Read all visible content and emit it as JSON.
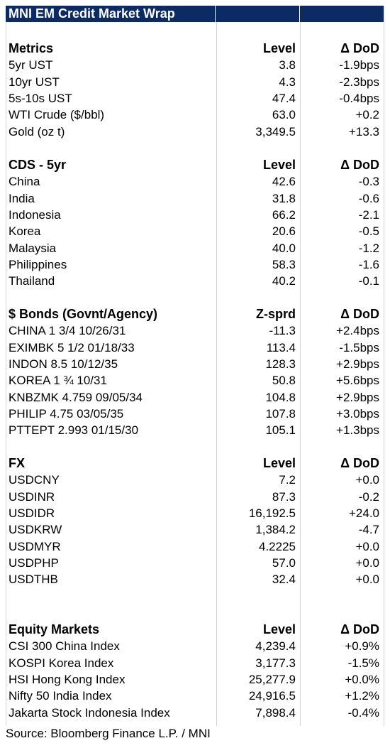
{
  "title": "MNI EM Credit Market Wrap",
  "sections": [
    {
      "id": "metrics",
      "header": [
        "Metrics",
        "Level",
        "Δ DoD"
      ],
      "rows": [
        [
          "5yr UST",
          "3.8",
          "-1.9bps"
        ],
        [
          "10yr UST",
          "4.3",
          "-2.3bps"
        ],
        [
          "5s-10s UST",
          "47.4",
          "-0.4bps"
        ],
        [
          "WTI Crude ($/bbl)",
          "63.0",
          "+0.2"
        ],
        [
          "Gold (oz t)",
          "3,349.5",
          "+13.3"
        ]
      ]
    },
    {
      "id": "cds",
      "header": [
        "CDS - 5yr",
        "Level",
        "Δ DoD"
      ],
      "rows": [
        [
          "China",
          "42.6",
          "-0.3"
        ],
        [
          "India",
          "31.8",
          "-0.6"
        ],
        [
          "Indonesia",
          "66.2",
          "-2.1"
        ],
        [
          "Korea",
          "20.6",
          "-0.5"
        ],
        [
          "Malaysia",
          "40.0",
          "-1.2"
        ],
        [
          "Philippines",
          "58.3",
          "-1.6"
        ],
        [
          "Thailand",
          "40.2",
          "-0.1"
        ]
      ]
    },
    {
      "id": "bonds",
      "header": [
        "$ Bonds (Govnt/Agency)",
        "Z-sprd",
        "Δ DoD"
      ],
      "rows": [
        [
          "CHINA 1 3/4 10/26/31",
          "-11.3",
          "+2.4bps"
        ],
        [
          "EXIMBK 5 1/2 01/18/33",
          "113.4",
          "-1.5bps"
        ],
        [
          "INDON 8.5 10/12/35",
          "128.3",
          "+2.9bps"
        ],
        [
          "KOREA 1 ¾ 10/31",
          "50.8",
          "+5.6bps"
        ],
        [
          "KNBZMK 4.759 09/05/34",
          "104.8",
          "+2.9bps"
        ],
        [
          "PHILIP 4.75 03/05/35",
          "107.8",
          "+3.0bps"
        ],
        [
          "PTTEPT 2.993 01/15/30",
          "105.1",
          "+1.3bps"
        ]
      ]
    },
    {
      "id": "fx",
      "header": [
        "FX",
        "Level",
        "Δ DoD"
      ],
      "rows": [
        [
          "USDCNY",
          "7.2",
          "+0.0"
        ],
        [
          "USDINR",
          "87.3",
          "-0.2"
        ],
        [
          "USDIDR",
          "16,192.5",
          "+24.0"
        ],
        [
          "USDKRW",
          "1,384.2",
          "-4.7"
        ],
        [
          "USDMYR",
          "4.2225",
          "+0.0"
        ],
        [
          "USDPHP",
          "57.0",
          "+0.0"
        ],
        [
          "USDTHB",
          "32.4",
          "+0.0"
        ]
      ]
    },
    {
      "id": "equity",
      "header": [
        "Equity Markets",
        "Level",
        "Δ DoD"
      ],
      "rows": [
        [
          "CSI 300 China Index",
          "4,239.4",
          "+0.9%"
        ],
        [
          "KOSPI Korea Index",
          "3,177.3",
          "-1.5%"
        ],
        [
          "HSI Hong Kong Index",
          "25,277.9",
          "+0.0%"
        ],
        [
          "Nifty 50 India Index",
          "24,916.5",
          "+1.2%"
        ],
        [
          "Jakarta Stock Indonesia Index",
          "7,898.4",
          "-0.4%"
        ]
      ]
    }
  ],
  "source": "Source: Bloomberg Finance L.P. / MNI",
  "colors": {
    "header_bg": "#0c2a63",
    "header_text": "#ffffff",
    "grid": "#d4d4d4"
  }
}
